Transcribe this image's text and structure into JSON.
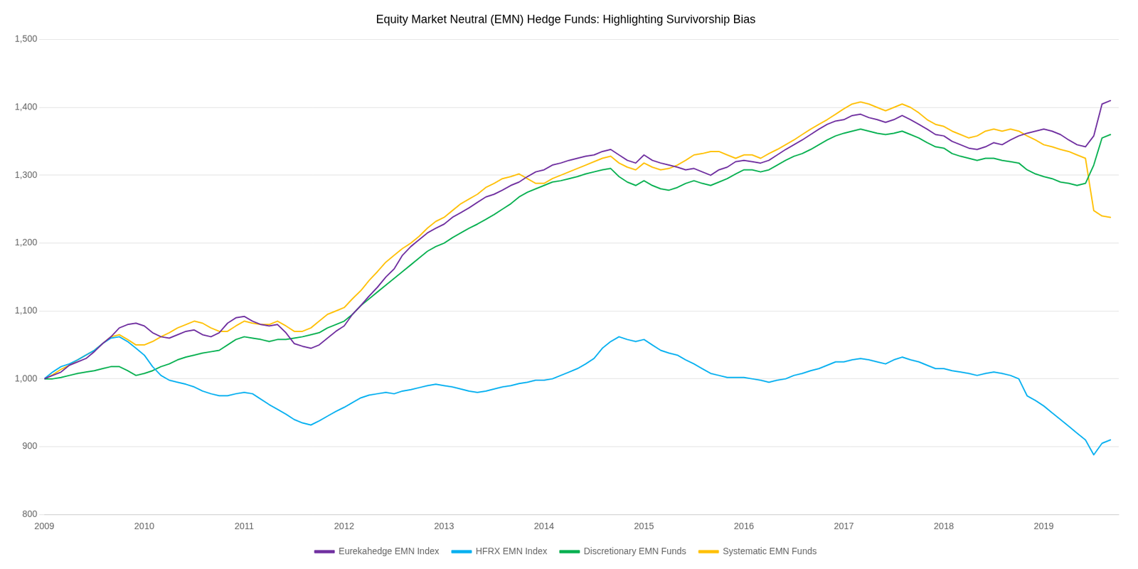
{
  "chart_data": {
    "type": "line",
    "title": "Equity Market Neutral (EMN) Hedge Funds: Highlighting Survivorship Bias",
    "x": [
      2009.0,
      2009.083,
      2009.167,
      2009.25,
      2009.333,
      2009.417,
      2009.5,
      2009.583,
      2009.667,
      2009.75,
      2009.833,
      2009.917,
      2010.0,
      2010.083,
      2010.167,
      2010.25,
      2010.333,
      2010.417,
      2010.5,
      2010.583,
      2010.667,
      2010.75,
      2010.833,
      2010.917,
      2011.0,
      2011.083,
      2011.167,
      2011.25,
      2011.333,
      2011.417,
      2011.5,
      2011.583,
      2011.667,
      2011.75,
      2011.833,
      2011.917,
      2012.0,
      2012.083,
      2012.167,
      2012.25,
      2012.333,
      2012.417,
      2012.5,
      2012.583,
      2012.667,
      2012.75,
      2012.833,
      2012.917,
      2013.0,
      2013.083,
      2013.167,
      2013.25,
      2013.333,
      2013.417,
      2013.5,
      2013.583,
      2013.667,
      2013.75,
      2013.833,
      2013.917,
      2014.0,
      2014.083,
      2014.167,
      2014.25,
      2014.333,
      2014.417,
      2014.5,
      2014.583,
      2014.667,
      2014.75,
      2014.833,
      2014.917,
      2015.0,
      2015.083,
      2015.167,
      2015.25,
      2015.333,
      2015.417,
      2015.5,
      2015.583,
      2015.667,
      2015.75,
      2015.833,
      2015.917,
      2016.0,
      2016.083,
      2016.167,
      2016.25,
      2016.333,
      2016.417,
      2016.5,
      2016.583,
      2016.667,
      2016.75,
      2016.833,
      2016.917,
      2017.0,
      2017.083,
      2017.167,
      2017.25,
      2017.333,
      2017.417,
      2017.5,
      2017.583,
      2017.667,
      2017.75,
      2017.833,
      2017.917,
      2018.0,
      2018.083,
      2018.167,
      2018.25,
      2018.333,
      2018.417,
      2018.5,
      2018.583,
      2018.667,
      2018.75,
      2018.833,
      2018.917,
      2019.0,
      2019.083,
      2019.167,
      2019.25,
      2019.333,
      2019.417,
      2019.5,
      2019.583,
      2019.667
    ],
    "series": [
      {
        "name": "Eurekahedge EMN Index",
        "color": "#7030A0",
        "values": [
          1000,
          1005,
          1010,
          1020,
          1025,
          1030,
          1040,
          1052,
          1062,
          1075,
          1080,
          1082,
          1078,
          1068,
          1062,
          1060,
          1065,
          1070,
          1072,
          1065,
          1062,
          1068,
          1082,
          1090,
          1092,
          1085,
          1080,
          1078,
          1080,
          1068,
          1052,
          1048,
          1045,
          1050,
          1060,
          1070,
          1078,
          1095,
          1108,
          1122,
          1135,
          1150,
          1162,
          1182,
          1195,
          1205,
          1215,
          1222,
          1228,
          1238,
          1245,
          1252,
          1260,
          1268,
          1272,
          1278,
          1285,
          1290,
          1298,
          1305,
          1308,
          1315,
          1318,
          1322,
          1325,
          1328,
          1330,
          1335,
          1338,
          1330,
          1322,
          1318,
          1330,
          1322,
          1318,
          1315,
          1312,
          1308,
          1310,
          1305,
          1300,
          1308,
          1312,
          1320,
          1322,
          1320,
          1318,
          1322,
          1330,
          1338,
          1345,
          1352,
          1360,
          1368,
          1375,
          1380,
          1382,
          1388,
          1390,
          1385,
          1382,
          1378,
          1382,
          1388,
          1382,
          1375,
          1368,
          1360,
          1358,
          1350,
          1345,
          1340,
          1338,
          1342,
          1348,
          1345,
          1352,
          1358,
          1362,
          1365,
          1368,
          1365,
          1360,
          1352,
          1345,
          1342,
          1358,
          1405,
          1410
        ]
      },
      {
        "name": "HFRX EMN Index",
        "color": "#00B0F0",
        "values": [
          1000,
          1010,
          1018,
          1022,
          1028,
          1035,
          1042,
          1052,
          1060,
          1062,
          1055,
          1045,
          1035,
          1018,
          1005,
          998,
          995,
          992,
          988,
          982,
          978,
          975,
          975,
          978,
          980,
          978,
          970,
          962,
          955,
          948,
          940,
          935,
          932,
          938,
          945,
          952,
          958,
          965,
          972,
          976,
          978,
          980,
          978,
          982,
          984,
          987,
          990,
          992,
          990,
          988,
          985,
          982,
          980,
          982,
          985,
          988,
          990,
          993,
          995,
          998,
          998,
          1000,
          1005,
          1010,
          1015,
          1022,
          1030,
          1045,
          1055,
          1062,
          1058,
          1055,
          1058,
          1050,
          1042,
          1038,
          1035,
          1028,
          1022,
          1015,
          1008,
          1005,
          1002,
          1002,
          1002,
          1000,
          998,
          995,
          998,
          1000,
          1005,
          1008,
          1012,
          1015,
          1020,
          1025,
          1025,
          1028,
          1030,
          1028,
          1025,
          1022,
          1028,
          1032,
          1028,
          1025,
          1020,
          1015,
          1015,
          1012,
          1010,
          1008,
          1005,
          1008,
          1010,
          1008,
          1005,
          1000,
          975,
          968,
          960,
          950,
          940,
          930,
          920,
          910,
          888,
          905,
          910
        ]
      },
      {
        "name": "Discretionary EMN Funds",
        "color": "#00B050",
        "values": [
          1000,
          1000,
          1002,
          1005,
          1008,
          1010,
          1012,
          1015,
          1018,
          1018,
          1012,
          1005,
          1008,
          1012,
          1018,
          1022,
          1028,
          1032,
          1035,
          1038,
          1040,
          1042,
          1050,
          1058,
          1062,
          1060,
          1058,
          1055,
          1058,
          1058,
          1060,
          1062,
          1065,
          1068,
          1075,
          1080,
          1085,
          1095,
          1108,
          1118,
          1128,
          1138,
          1148,
          1158,
          1168,
          1178,
          1188,
          1195,
          1200,
          1208,
          1215,
          1222,
          1228,
          1235,
          1242,
          1250,
          1258,
          1268,
          1275,
          1280,
          1285,
          1290,
          1292,
          1295,
          1298,
          1302,
          1305,
          1308,
          1310,
          1298,
          1290,
          1285,
          1292,
          1285,
          1280,
          1278,
          1282,
          1288,
          1292,
          1288,
          1285,
          1290,
          1295,
          1302,
          1308,
          1308,
          1305,
          1308,
          1315,
          1322,
          1328,
          1332,
          1338,
          1345,
          1352,
          1358,
          1362,
          1365,
          1368,
          1365,
          1362,
          1360,
          1362,
          1365,
          1360,
          1355,
          1348,
          1342,
          1340,
          1332,
          1328,
          1325,
          1322,
          1325,
          1325,
          1322,
          1320,
          1318,
          1308,
          1302,
          1298,
          1295,
          1290,
          1288,
          1285,
          1288,
          1315,
          1355,
          1360
        ]
      },
      {
        "name": "Systematic EMN Funds",
        "color": "#FFC000",
        "values": [
          1000,
          1006,
          1014,
          1020,
          1028,
          1035,
          1042,
          1052,
          1062,
          1065,
          1058,
          1050,
          1050,
          1055,
          1062,
          1068,
          1075,
          1080,
          1085,
          1082,
          1075,
          1070,
          1070,
          1078,
          1085,
          1082,
          1080,
          1080,
          1085,
          1078,
          1070,
          1070,
          1075,
          1085,
          1095,
          1100,
          1105,
          1118,
          1130,
          1145,
          1158,
          1172,
          1182,
          1192,
          1200,
          1210,
          1222,
          1232,
          1238,
          1248,
          1258,
          1265,
          1272,
          1282,
          1288,
          1295,
          1298,
          1302,
          1295,
          1288,
          1288,
          1295,
          1300,
          1305,
          1310,
          1315,
          1320,
          1325,
          1328,
          1318,
          1312,
          1308,
          1318,
          1312,
          1308,
          1310,
          1315,
          1322,
          1330,
          1332,
          1335,
          1335,
          1330,
          1325,
          1330,
          1330,
          1325,
          1332,
          1338,
          1345,
          1352,
          1360,
          1368,
          1375,
          1382,
          1390,
          1398,
          1405,
          1408,
          1405,
          1400,
          1395,
          1400,
          1405,
          1400,
          1392,
          1382,
          1375,
          1372,
          1365,
          1360,
          1355,
          1358,
          1365,
          1368,
          1365,
          1368,
          1365,
          1358,
          1352,
          1345,
          1342,
          1338,
          1335,
          1330,
          1325,
          1248,
          1240,
          1238
        ]
      }
    ],
    "xlim": [
      2009.0,
      2019.75
    ],
    "xticks": [
      2009,
      2010,
      2011,
      2012,
      2013,
      2014,
      2015,
      2016,
      2017,
      2018,
      2019
    ],
    "ylim": [
      800,
      1500
    ],
    "yticks": [
      800,
      900,
      {
        "value": 1000,
        "label": "1,000"
      },
      {
        "value": 1100,
        "label": "1,100"
      },
      {
        "value": 1200,
        "label": "1,200"
      },
      {
        "value": 1300,
        "label": "1,300"
      },
      {
        "value": 1400,
        "label": "1,400"
      },
      {
        "value": 1500,
        "label": "1,500"
      }
    ],
    "grid": "y",
    "legend": "bottom"
  }
}
